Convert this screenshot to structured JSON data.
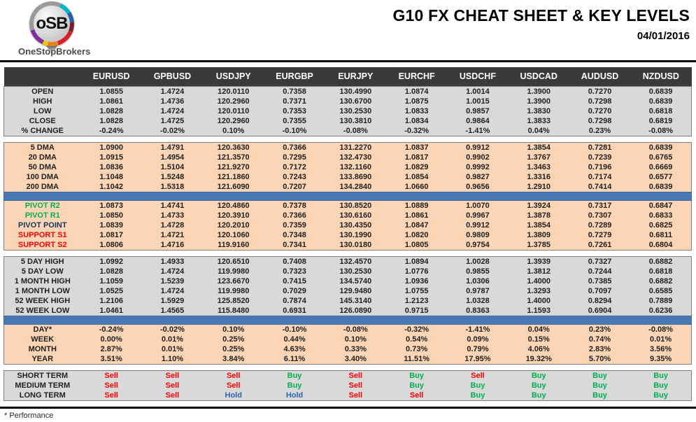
{
  "header": {
    "logo_monogram": "oSB",
    "logo_brand": "OneStopBrokers",
    "title": "G10 FX CHEAT SHEET & KEY LEVELS",
    "date": "04/01/2016"
  },
  "colors": {
    "header-bg": "#3a3a3a",
    "gray-bg": "#d9d9d9",
    "peach-bg": "#fbd5b5",
    "divider-blue": "#4879b4",
    "sell-red": "#fe0000",
    "buy-green": "#00b050",
    "hold-blue": "#2e64b5",
    "pivot-navy": "#17365d",
    "rule-black": "#000000"
  },
  "table": {
    "columns": [
      "EURUSD",
      "GPBUSD",
      "USDJPY",
      "EURGBP",
      "EURJPY",
      "EURCHF",
      "USDCHF",
      "USDCAD",
      "AUDUSD",
      "NZDUSD"
    ],
    "sections": [
      {
        "id": "ohlc",
        "theme": "gray",
        "separator_before": "none",
        "rows": [
          {
            "label": "OPEN",
            "values": [
              "1.0855",
              "1.4724",
              "120.0110",
              "0.7358",
              "130.4990",
              "1.0874",
              "1.0014",
              "1.3900",
              "0.7270",
              "0.6839"
            ]
          },
          {
            "label": "HIGH",
            "values": [
              "1.0861",
              "1.4736",
              "120.2960",
              "0.7371",
              "130.6700",
              "1.0875",
              "1.0015",
              "1.3900",
              "0.7298",
              "0.6839"
            ]
          },
          {
            "label": "LOW",
            "values": [
              "1.0828",
              "1.4724",
              "120.0110",
              "0.7353",
              "130.2530",
              "1.0833",
              "0.9857",
              "1.3830",
              "0.7270",
              "0.6818"
            ]
          },
          {
            "label": "CLOSE",
            "values": [
              "1.0828",
              "1.4725",
              "120.2960",
              "0.7355",
              "130.3810",
              "1.0834",
              "0.9864",
              "1.3833",
              "0.7298",
              "0.6819"
            ]
          },
          {
            "label": "% CHANGE",
            "values": [
              "-0.24%",
              "-0.02%",
              "0.10%",
              "-0.10%",
              "-0.08%",
              "-0.32%",
              "-1.41%",
              "0.04%",
              "0.23%",
              "-0.08%"
            ]
          }
        ]
      },
      {
        "id": "dma",
        "theme": "peach",
        "separator_before": "gap",
        "rows": [
          {
            "label": "5 DMA",
            "values": [
              "1.0900",
              "1.4791",
              "120.3630",
              "0.7366",
              "131.2270",
              "1.0837",
              "0.9912",
              "1.3854",
              "0.7281",
              "0.6839"
            ]
          },
          {
            "label": "20 DMA",
            "values": [
              "1.0915",
              "1.4954",
              "121.3570",
              "0.7295",
              "132.4730",
              "1.0817",
              "0.9902",
              "1.3767",
              "0.7239",
              "0.6765"
            ]
          },
          {
            "label": "50 DMA",
            "values": [
              "1.0836",
              "1.5104",
              "121.9270",
              "0.7172",
              "132.1160",
              "1.0829",
              "0.9992",
              "1.3463",
              "0.7196",
              "0.6669"
            ]
          },
          {
            "label": "100 DMA",
            "values": [
              "1.1048",
              "1.5248",
              "121.1860",
              "0.7243",
              "133.8690",
              "1.0854",
              "0.9827",
              "1.3316",
              "0.7174",
              "0.6577"
            ]
          },
          {
            "label": "200 DMA",
            "values": [
              "1.1042",
              "1.5318",
              "121.6090",
              "0.7207",
              "134.2840",
              "1.0660",
              "0.9656",
              "1.2910",
              "0.7414",
              "0.6839"
            ]
          }
        ]
      },
      {
        "id": "pivots",
        "theme": "peach",
        "separator_before": "divider",
        "rows": [
          {
            "label": "PIVOT R2",
            "label_color": "green",
            "values": [
              "1.0873",
              "1.4741",
              "120.4860",
              "0.7378",
              "130.8520",
              "1.0889",
              "1.0070",
              "1.3924",
              "0.7317",
              "0.6847"
            ]
          },
          {
            "label": "PIVOT R1",
            "label_color": "green",
            "values": [
              "1.0850",
              "1.4733",
              "120.3910",
              "0.7366",
              "130.6160",
              "1.0861",
              "0.9967",
              "1.3878",
              "0.7307",
              "0.6833"
            ]
          },
          {
            "label": "PIVOT POINT",
            "label_color": "navy",
            "values": [
              "1.0839",
              "1.4728",
              "120.2010",
              "0.7359",
              "130.4350",
              "1.0847",
              "0.9912",
              "1.3854",
              "0.7289",
              "0.6825"
            ]
          },
          {
            "label": "SUPPORT S1",
            "label_color": "red",
            "values": [
              "1.0817",
              "1.4721",
              "120.1060",
              "0.7348",
              "130.1990",
              "1.0820",
              "0.9809",
              "1.3809",
              "0.7279",
              "0.6811"
            ]
          },
          {
            "label": "SUPPORT S2",
            "label_color": "red",
            "values": [
              "1.0806",
              "1.4716",
              "119.9160",
              "0.7341",
              "130.0180",
              "1.0805",
              "0.9754",
              "1.3785",
              "0.7261",
              "0.6804"
            ]
          }
        ]
      },
      {
        "id": "ranges",
        "theme": "gray",
        "separator_before": "gap",
        "rows": [
          {
            "label": "5 DAY HIGH",
            "values": [
              "1.0992",
              "1.4933",
              "120.6510",
              "0.7408",
              "132.4570",
              "1.0894",
              "1.0028",
              "1.3939",
              "0.7327",
              "0.6882"
            ]
          },
          {
            "label": "5 DAY LOW",
            "values": [
              "1.0828",
              "1.4724",
              "119.9980",
              "0.7323",
              "130.2530",
              "1.0776",
              "0.9855",
              "1.3812",
              "0.7244",
              "0.6818"
            ]
          },
          {
            "label": "1 MONTH HIGH",
            "values": [
              "1.1059",
              "1.5239",
              "123.6670",
              "0.7415",
              "134.5740",
              "1.0936",
              "1.0306",
              "1.4000",
              "0.7385",
              "0.6882"
            ]
          },
          {
            "label": "1 MONTH LOW",
            "values": [
              "1.0525",
              "1.4724",
              "119.9980",
              "0.7029",
              "129.9480",
              "1.0755",
              "0.9787",
              "1.3293",
              "0.7097",
              "0.6585"
            ]
          },
          {
            "label": "52 WEEK HIGH",
            "values": [
              "1.2106",
              "1.5929",
              "125.8520",
              "0.7874",
              "145.3140",
              "1.2123",
              "1.0328",
              "1.4000",
              "0.8294",
              "0.7889"
            ]
          },
          {
            "label": "52 WEEK LOW",
            "values": [
              "1.0461",
              "1.4565",
              "115.8480",
              "0.6931",
              "126.0890",
              "0.9715",
              "0.8363",
              "1.1593",
              "0.6904",
              "0.6236"
            ]
          }
        ]
      },
      {
        "id": "performance",
        "theme": "peach",
        "separator_before": "divider",
        "rows": [
          {
            "label": "DAY*",
            "values": [
              "-0.24%",
              "-0.02%",
              "0.10%",
              "-0.10%",
              "-0.08%",
              "-0.32%",
              "-1.41%",
              "0.04%",
              "0.23%",
              "-0.08%"
            ]
          },
          {
            "label": "WEEK",
            "values": [
              "0.00%",
              "0.01%",
              "0.25%",
              "0.44%",
              "0.10%",
              "0.54%",
              "0.09%",
              "0.15%",
              "0.74%",
              "0.01%"
            ]
          },
          {
            "label": "MONTH",
            "values": [
              "2.87%",
              "0.01%",
              "0.25%",
              "4.63%",
              "0.33%",
              "0.73%",
              "0.79%",
              "4.06%",
              "2.83%",
              "3.56%"
            ]
          },
          {
            "label": "YEAR",
            "values": [
              "3.51%",
              "1.10%",
              "3.84%",
              "6.11%",
              "3.40%",
              "11.51%",
              "17.95%",
              "19.32%",
              "5.70%",
              "9.35%"
            ]
          }
        ]
      },
      {
        "id": "signals",
        "theme": "gray",
        "separator_before": "gap",
        "signal_colors": true,
        "rows": [
          {
            "label": "SHORT TERM",
            "values": [
              "Sell",
              "Sell",
              "Sell",
              "Buy",
              "Sell",
              "Buy",
              "Sell",
              "Buy",
              "Buy",
              "Buy"
            ]
          },
          {
            "label": "MEDIUM TERM",
            "values": [
              "Sell",
              "Sell",
              "Sell",
              "Buy",
              "Sell",
              "Buy",
              "Buy",
              "Buy",
              "Buy",
              "Buy"
            ]
          },
          {
            "label": "LONG TERM",
            "values": [
              "Sell",
              "Sell",
              "Hold",
              "Hold",
              "Sell",
              "Sell",
              "Buy",
              "Buy",
              "Buy",
              "Buy"
            ]
          }
        ]
      }
    ]
  },
  "footer": {
    "note": "* Performance"
  }
}
